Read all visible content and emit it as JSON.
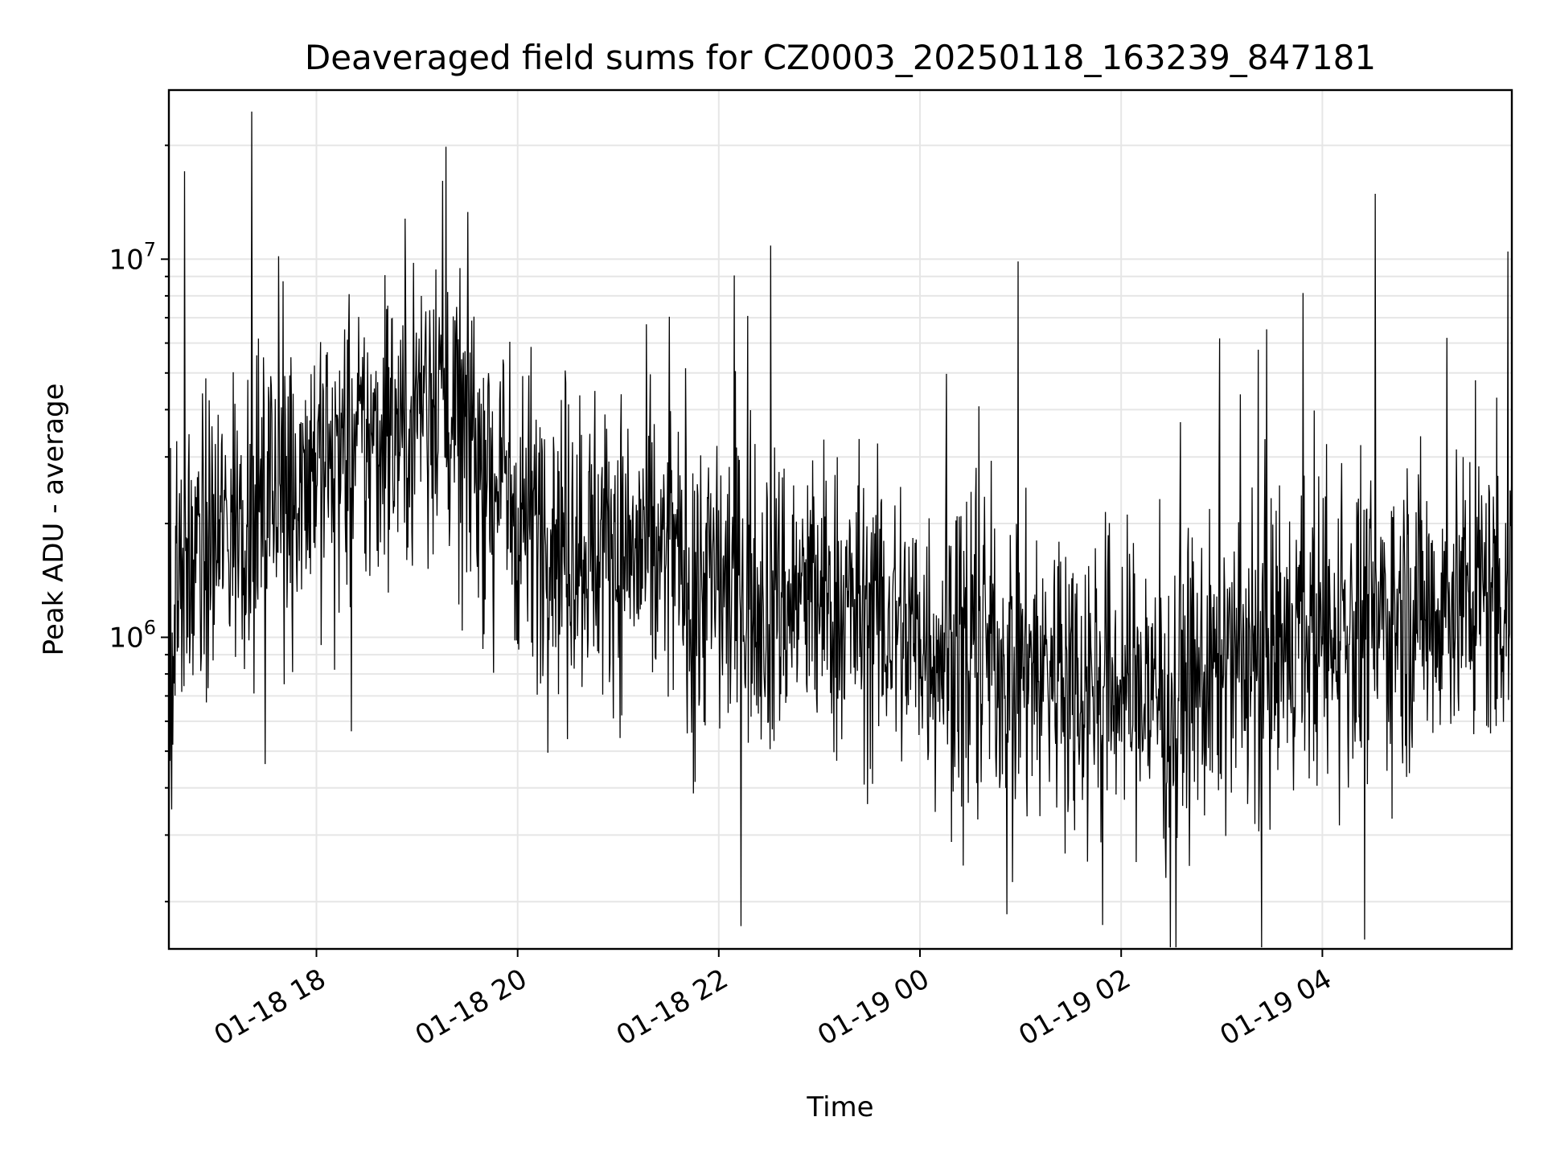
{
  "chart_data": {
    "type": "line",
    "title": "Deaveraged field sums for CZ0003_20250118_163239_847181",
    "xlabel": "Time",
    "ylabel": "Peak ADU - average",
    "y_scale": "log",
    "x_range": [
      "2025-01-18 16:32",
      "2025-01-19 05:53"
    ],
    "ylim": [
      150000,
      28000000
    ],
    "grid": true,
    "legend": "none",
    "series_color": "#000000",
    "x_ticks": [
      {
        "value": "2025-01-18 18:00",
        "label": "01-18 18"
      },
      {
        "value": "2025-01-18 20:00",
        "label": "01-18 20"
      },
      {
        "value": "2025-01-18 22:00",
        "label": "01-18 22"
      },
      {
        "value": "2025-01-19 00:00",
        "label": "01-19 00"
      },
      {
        "value": "2025-01-19 02:00",
        "label": "01-19 02"
      },
      {
        "value": "2025-01-19 04:00",
        "label": "01-19 04"
      }
    ],
    "y_ticks": [
      {
        "value": 1000000,
        "base": "10",
        "exp": "6"
      },
      {
        "value": 10000000,
        "base": "10",
        "exp": "7"
      }
    ],
    "series": [
      {
        "points": [
          [
            "2025-01-18 16:32",
            1200000
          ],
          [
            "2025-01-18 16:45",
            1500000
          ],
          [
            "2025-01-18 17:00",
            1800000
          ],
          [
            "2025-01-18 17:15",
            2100000
          ],
          [
            "2025-01-18 17:30",
            2400000
          ],
          [
            "2025-01-18 17:45",
            2700000
          ],
          [
            "2025-01-18 18:00",
            3000000
          ],
          [
            "2025-01-18 18:15",
            3000000
          ],
          [
            "2025-01-18 18:30",
            3200000
          ],
          [
            "2025-01-18 18:45",
            3500000
          ],
          [
            "2025-01-18 19:00",
            4200000
          ],
          [
            "2025-01-18 19:10",
            5000000
          ],
          [
            "2025-01-18 19:20",
            4000000
          ],
          [
            "2025-01-18 19:40",
            3000000
          ],
          [
            "2025-01-18 20:00",
            2200000
          ],
          [
            "2025-01-18 20:30",
            1900000
          ],
          [
            "2025-01-18 21:00",
            1700000
          ],
          [
            "2025-01-18 21:30",
            1600000
          ],
          [
            "2025-01-18 22:00",
            1400000
          ],
          [
            "2025-01-18 22:30",
            1300000
          ],
          [
            "2025-01-18 23:00",
            1250000
          ],
          [
            "2025-01-18 23:30",
            1150000
          ],
          [
            "2025-01-19 00:00",
            1000000
          ],
          [
            "2025-01-19 00:30",
            950000
          ],
          [
            "2025-01-19 01:00",
            850000
          ],
          [
            "2025-01-19 01:30",
            800000
          ],
          [
            "2025-01-19 02:00",
            750000
          ],
          [
            "2025-01-19 02:30",
            700000
          ],
          [
            "2025-01-19 03:00",
            800000
          ],
          [
            "2025-01-19 03:30",
            900000
          ],
          [
            "2025-01-19 04:00",
            1000000
          ],
          [
            "2025-01-19 04:30",
            1100000
          ],
          [
            "2025-01-19 05:00",
            1200000
          ],
          [
            "2025-01-19 05:30",
            1300000
          ],
          [
            "2025-01-19 05:53",
            1300000
          ]
        ],
        "noise": "high-frequency scatter around these levels, spikes up to about 22000000 near 2025-01-18 19:00 and down to about 170000 near 2025-01-19 04:15"
      }
    ]
  }
}
